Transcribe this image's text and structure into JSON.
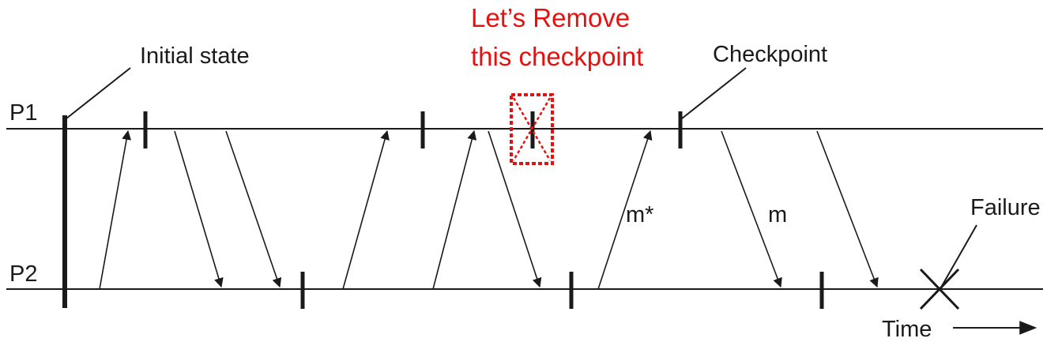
{
  "processes": [
    "P1",
    "P2"
  ],
  "labels": {
    "initial_state": "Initial state",
    "checkpoint": "Checkpoint",
    "failure": "Failure",
    "time": "Time"
  },
  "annotation": {
    "line1": "Let’s Remove",
    "line2": "this checkpoint",
    "color": "#e8100f"
  },
  "messages": {
    "m_star": "m*",
    "m": "m"
  }
}
